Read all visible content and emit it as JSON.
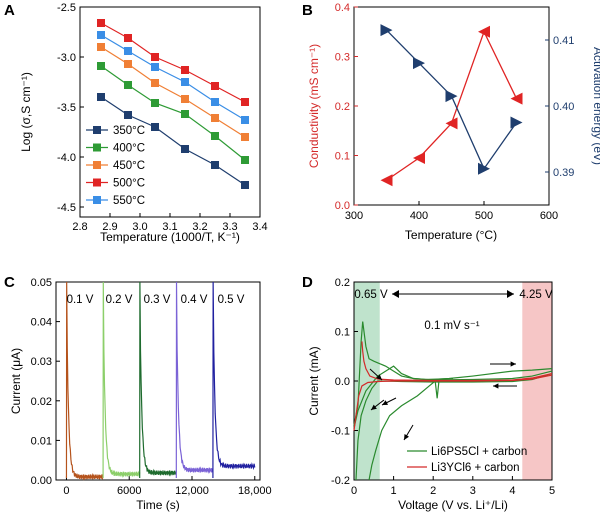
{
  "chart_data": [
    {
      "panel": "A",
      "type": "scatter",
      "xlabel": "Temperature (1000/T, K⁻¹)",
      "ylabel": "Log (σ,S cm⁻¹)",
      "xlim": [
        2.8,
        3.4
      ],
      "ylim": [
        -4.6,
        -2.5
      ],
      "x_ticks": [
        "2.8",
        "2.9",
        "3.0",
        "3.1",
        "3.2",
        "3.3",
        "3.4"
      ],
      "y_ticks": [
        "-2.5",
        "-3.0",
        "-3.5",
        "-4.0",
        "-4.5"
      ],
      "x": [
        2.87,
        2.96,
        3.05,
        3.15,
        3.25,
        3.35
      ],
      "legend_position": "bottom-left",
      "series": [
        {
          "name": "350°C",
          "color": "#1f3e6e",
          "values": [
            -3.4,
            -3.58,
            -3.7,
            -3.92,
            -4.08,
            -4.28
          ]
        },
        {
          "name": "400°C",
          "color": "#2e9b35",
          "values": [
            -3.09,
            -3.28,
            -3.46,
            -3.57,
            -3.79,
            -4.03
          ]
        },
        {
          "name": "450°C",
          "color": "#f07f35",
          "values": [
            -2.9,
            -3.07,
            -3.26,
            -3.42,
            -3.61,
            -3.8
          ]
        },
        {
          "name": "500°C",
          "color": "#e02424",
          "values": [
            -2.66,
            -2.81,
            -3.0,
            -3.13,
            -3.29,
            -3.45
          ]
        },
        {
          "name": "550°C",
          "color": "#3a8ee6",
          "values": [
            -2.78,
            -2.94,
            -3.1,
            -3.25,
            -3.45,
            -3.63
          ]
        }
      ]
    },
    {
      "panel": "B",
      "type": "line",
      "xlabel": "Temperature (°C)",
      "ylabel_left": "Conductivity (mS cm⁻¹)",
      "ylabel_right": "Activation energy (eV)",
      "xlim": [
        300,
        600
      ],
      "ylim_left": [
        0.0,
        0.4
      ],
      "ylim_right": [
        0.385,
        0.415
      ],
      "x_ticks": [
        "300",
        "400",
        "500",
        "600"
      ],
      "y_ticks_left": [
        "0.0",
        "0.1",
        "0.2",
        "0.3",
        "0.4"
      ],
      "y_ticks_right": [
        "0.39",
        "0.40",
        "0.41"
      ],
      "x": [
        350,
        400,
        450,
        500,
        550
      ],
      "series": [
        {
          "name": "Conductivity",
          "axis": "left",
          "color": "#e02424",
          "values": [
            0.05,
            0.095,
            0.165,
            0.35,
            0.215
          ]
        },
        {
          "name": "Activation energy",
          "axis": "right",
          "color": "#1f3e6e",
          "values": [
            0.4115,
            0.4065,
            0.4015,
            0.3905,
            0.3975
          ]
        }
      ]
    },
    {
      "panel": "C",
      "type": "line",
      "xlabel": "Time (s)",
      "ylabel": "Current (μA)",
      "xlim": [
        -1000,
        18500
      ],
      "ylim": [
        0.0,
        0.05
      ],
      "x_ticks": [
        "0",
        "6000",
        "12,000",
        "18,000"
      ],
      "y_ticks": [
        "0.00",
        "0.01",
        "0.02",
        "0.03",
        "0.04",
        "0.05"
      ],
      "annotations": [
        "0.1 V",
        "0.2 V",
        "0.3 V",
        "0.4 V",
        "0.5 V"
      ],
      "series": [
        {
          "name": "0.1 V",
          "color": "#b5531c",
          "start": 0,
          "end": 3500,
          "peak": 0.05,
          "tail": 0.0008
        },
        {
          "name": "0.2 V",
          "color": "#8ccf6a",
          "start": 3500,
          "end": 7000,
          "peak": 0.05,
          "tail": 0.0015
        },
        {
          "name": "0.3 V",
          "color": "#1e6b2e",
          "start": 7000,
          "end": 10500,
          "peak": 0.05,
          "tail": 0.0018
        },
        {
          "name": "0.4 V",
          "color": "#7b63d6",
          "start": 10500,
          "end": 14000,
          "peak": 0.05,
          "tail": 0.0025
        },
        {
          "name": "0.5 V",
          "color": "#2020a0",
          "start": 14000,
          "end": 18000,
          "peak": 0.05,
          "tail": 0.0035
        }
      ]
    },
    {
      "panel": "D",
      "type": "line",
      "xlabel": "Voltage (V vs. Li⁺/Li)",
      "ylabel": "Current (mA)",
      "xlim": [
        0,
        5
      ],
      "ylim": [
        -0.2,
        0.2
      ],
      "x_ticks": [
        "0",
        "1",
        "2",
        "3",
        "4",
        "5"
      ],
      "y_ticks": [
        "0.2",
        "0.1",
        "0.0",
        "-0.1",
        "-0.2"
      ],
      "annotations": [
        "0.65 V",
        "4.25 V",
        "0.1 mV s⁻¹"
      ],
      "shaded_regions": [
        {
          "from": 0,
          "to": 0.65,
          "color": "#bfe3cc"
        },
        {
          "from": 4.25,
          "to": 5,
          "color": "#f6c6c6"
        }
      ],
      "legend_position": "bottom-right",
      "series": [
        {
          "name": "Li6PS5Cl + carbon",
          "color": "#2a8a2e"
        },
        {
          "name": "Li3YCl6 + carbon",
          "color": "#d42a2a"
        }
      ]
    }
  ],
  "panels": [
    "A",
    "B",
    "C",
    "D"
  ]
}
